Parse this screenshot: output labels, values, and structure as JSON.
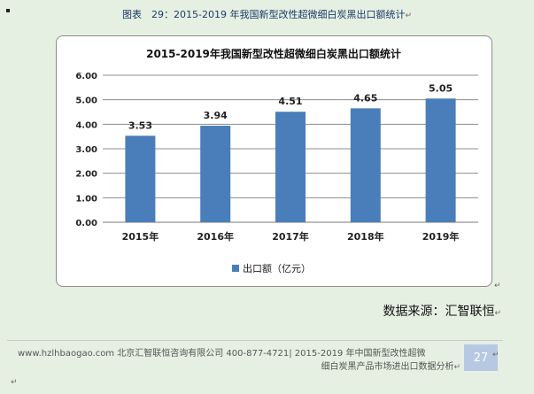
{
  "caption": {
    "text": "图表　29：2015-2019 年我国新型改性超微细白炭黑出口额统计",
    "return_mark": "↵"
  },
  "chart_data": {
    "type": "bar",
    "title": "2015-2019年我国新型改性超微细白炭黑出口额统计",
    "categories": [
      "2015年",
      "2016年",
      "2017年",
      "2018年",
      "2019年"
    ],
    "series": [
      {
        "name": "出口额（亿元）",
        "values": [
          3.53,
          3.94,
          4.51,
          4.65,
          5.05
        ],
        "color": "#4a7ebb"
      }
    ],
    "value_labels": [
      "3.53",
      "3.94",
      "4.51",
      "4.65",
      "5.05"
    ],
    "ylim": [
      0,
      6
    ],
    "yticks": [
      "0.00",
      "1.00",
      "2.00",
      "3.00",
      "4.00",
      "5.00",
      "6.00"
    ],
    "grid": true,
    "legend_position": "bottom-center"
  },
  "source": {
    "text": "数据来源：汇智联恒",
    "return_mark": "↵"
  },
  "footer": {
    "line1": "www.hzlhbaogao.com 北京汇智联恒咨询有限公司  400-877-4721| 2015-2019 年中国新型改性超微",
    "line2": "细白炭黑产品市场进出口数据分析",
    "return_mark": "↵",
    "page_number": "27"
  },
  "end_mark": "↵"
}
